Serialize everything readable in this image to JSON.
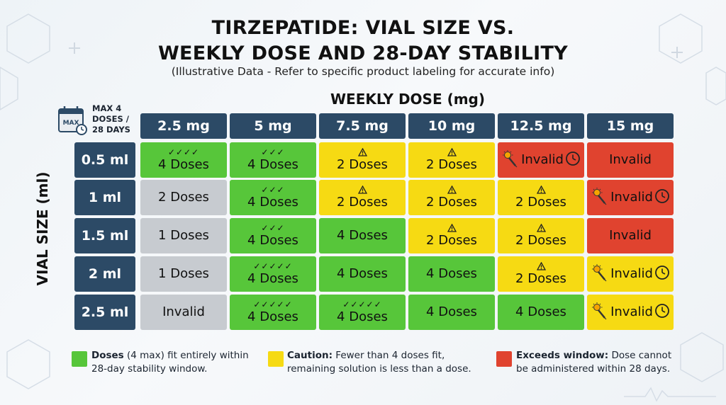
{
  "title_line1": "TIRZEPATIDE: VIAL SIZE VS.",
  "title_line2": "WEEKLY DOSE AND 28-DAY STABILITY",
  "subtitle": "(Illustrative Data - Refer to specific product labeling for accurate info)",
  "corner_box": {
    "icon_text": "MAX",
    "label": "MAX 4 DOSES / 28 DAYS"
  },
  "colors": {
    "header": "#2c4a66",
    "green": "#57c63a",
    "yellow": "#f6da13",
    "red": "#e0432f",
    "grey": "#c7cbd0"
  },
  "chart_data": {
    "type": "table",
    "col_axis_label": "WEEKLY DOSE (mg)",
    "row_axis_label": "VIAL SIZE (ml)",
    "columns": [
      "2.5 mg",
      "5 mg",
      "7.5 mg",
      "10 mg",
      "12.5 mg",
      "15 mg"
    ],
    "rows": [
      {
        "label": "0.5 ml",
        "cells": [
          {
            "text": "4 Doses",
            "color": "green",
            "icon": "checkmarks-icon",
            "checks": 4
          },
          {
            "text": "4 Doses",
            "color": "green",
            "icon": "checkmarks-icon",
            "checks": 3
          },
          {
            "text": "2 Doses",
            "color": "yellow",
            "icon": "warning-icon"
          },
          {
            "text": "2 Doses",
            "color": "yellow",
            "icon": "warning-icon"
          },
          {
            "text": "Invalid",
            "color": "red",
            "icon": "invalid-icons"
          },
          {
            "text": "Invalid",
            "color": "red",
            "icon": "none"
          }
        ]
      },
      {
        "label": "1 ml",
        "cells": [
          {
            "text": "2 Doses",
            "color": "grey",
            "icon": "none"
          },
          {
            "text": "4 Doses",
            "color": "green",
            "icon": "checkmarks-icon",
            "checks": 3
          },
          {
            "text": "2 Doses",
            "color": "yellow",
            "icon": "warning-icon"
          },
          {
            "text": "2 Doses",
            "color": "yellow",
            "icon": "warning-icon"
          },
          {
            "text": "2 Doses",
            "color": "yellow",
            "icon": "warning-icon"
          },
          {
            "text": "Invalid",
            "color": "red",
            "icon": "invalid-icons"
          }
        ]
      },
      {
        "label": "1.5 ml",
        "cells": [
          {
            "text": "1 Doses",
            "color": "grey",
            "icon": "none"
          },
          {
            "text": "4 Doses",
            "color": "green",
            "icon": "checkmarks-icon",
            "checks": 3
          },
          {
            "text": "4 Doses",
            "color": "green",
            "icon": "none"
          },
          {
            "text": "2 Doses",
            "color": "yellow",
            "icon": "warning-icon"
          },
          {
            "text": "2 Doses",
            "color": "yellow",
            "icon": "warning-icon"
          },
          {
            "text": "Invalid",
            "color": "red",
            "icon": "none"
          }
        ]
      },
      {
        "label": "2 ml",
        "cells": [
          {
            "text": "1 Doses",
            "color": "grey",
            "icon": "none"
          },
          {
            "text": "4 Doses",
            "color": "green",
            "icon": "checkmarks-icon",
            "checks": 5
          },
          {
            "text": "4 Doses",
            "color": "green",
            "icon": "none"
          },
          {
            "text": "4 Doses",
            "color": "green",
            "icon": "none"
          },
          {
            "text": "2 Doses",
            "color": "yellow",
            "icon": "warning-icon"
          },
          {
            "text": "Invalid",
            "color": "yellow",
            "icon": "invalid-icons"
          }
        ]
      },
      {
        "label": "2.5 ml",
        "cells": [
          {
            "text": "Invalid",
            "color": "grey",
            "icon": "none"
          },
          {
            "text": "4 Doses",
            "color": "green",
            "icon": "checkmarks-icon",
            "checks": 5
          },
          {
            "text": "4 Doses",
            "color": "green",
            "icon": "checkmarks-icon",
            "checks": 5
          },
          {
            "text": "4 Doses",
            "color": "green",
            "icon": "none"
          },
          {
            "text": "4 Doses",
            "color": "green",
            "icon": "none"
          },
          {
            "text": "Invalid",
            "color": "yellow",
            "icon": "invalid-icons"
          }
        ]
      }
    ]
  },
  "legend": [
    {
      "color": "green",
      "bold": "Doses",
      "rest_line1": " (4 max) fit entirely within",
      "line2": "28-day stability window."
    },
    {
      "color": "yellow",
      "bold": "Caution:",
      "rest_line1": " Fewer than 4 doses fit,",
      "line2": "remaining solution is less than a dose."
    },
    {
      "color": "red",
      "bold": "Exceeds window:",
      "rest_line1": " Dose cannot",
      "line2": "be administered within 28 days."
    }
  ]
}
